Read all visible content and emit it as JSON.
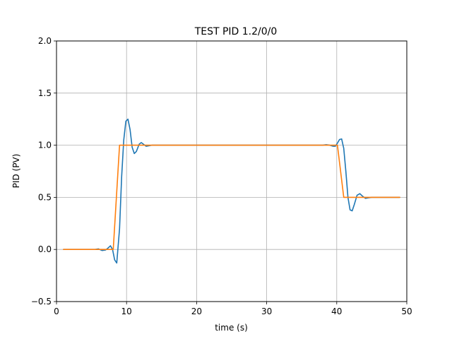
{
  "chart_data": {
    "type": "line",
    "title": "TEST PID 1.2/0/0",
    "xlabel": "time (s)",
    "ylabel": "PID (PV)",
    "xlim": [
      0,
      50
    ],
    "ylim": [
      -0.5,
      2.0
    ],
    "xticks": [
      0,
      10,
      20,
      30,
      40,
      50
    ],
    "xtick_labels": [
      "0",
      "10",
      "20",
      "30",
      "40",
      "50"
    ],
    "yticks": [
      -0.5,
      0.0,
      0.5,
      1.0,
      1.5,
      2.0
    ],
    "ytick_labels": [
      "−0.5",
      "0.0",
      "0.5",
      "1.0",
      "1.5",
      "2.0"
    ],
    "grid": true,
    "series": [
      {
        "color": "#1f77b4",
        "x": [
          1,
          5,
          5.5,
          6,
          6.5,
          7,
          7.3,
          7.7,
          8,
          8.3,
          8.6,
          9,
          9.3,
          9.6,
          9.9,
          10.2,
          10.5,
          10.8,
          11.1,
          11.4,
          11.8,
          12.1,
          12.4,
          12.8,
          13.2,
          13.6,
          14,
          15,
          20,
          30,
          38,
          38.5,
          39,
          39.5,
          39.8,
          40.1,
          40.4,
          40.7,
          41,
          41.3,
          41.6,
          41.9,
          42.2,
          42.5,
          42.9,
          43.3,
          43.7,
          44.1,
          44.5,
          45,
          46,
          49
        ],
        "y": [
          0,
          0,
          0,
          0.005,
          -0.01,
          -0.005,
          0.01,
          0.035,
          0.0,
          -0.1,
          -0.13,
          0.2,
          0.7,
          1.05,
          1.23,
          1.25,
          1.15,
          0.98,
          0.92,
          0.94,
          1.01,
          1.025,
          1.01,
          0.99,
          0.995,
          1.0,
          1.0,
          1.0,
          1.0,
          1.0,
          1.0,
          1.005,
          1.0,
          0.99,
          0.99,
          1.02,
          1.055,
          1.06,
          0.97,
          0.75,
          0.5,
          0.38,
          0.37,
          0.43,
          0.52,
          0.535,
          0.51,
          0.49,
          0.495,
          0.5,
          0.5,
          0.5
        ]
      },
      {
        "color": "#ff7f0e",
        "x": [
          1,
          8,
          8.1,
          9,
          40,
          40.1,
          41,
          49
        ],
        "y": [
          0,
          0,
          0,
          1,
          1,
          1,
          0.5,
          0.5
        ]
      }
    ]
  }
}
